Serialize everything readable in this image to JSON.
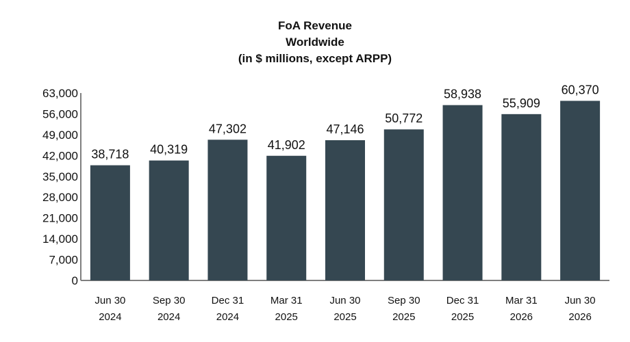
{
  "chart_data": {
    "type": "bar",
    "title_lines": [
      "FoA Revenue",
      "Worldwide",
      "(in $ millions, except ARPP)"
    ],
    "categories": [
      [
        "Jun 30",
        "2024"
      ],
      [
        "Sep 30",
        "2024"
      ],
      [
        "Dec 31",
        "2024"
      ],
      [
        "Mar 31",
        "2025"
      ],
      [
        "Jun 30",
        "2025"
      ],
      [
        "Sep 30",
        "2025"
      ],
      [
        "Dec 31",
        "2025"
      ],
      [
        "Mar 31",
        "2026"
      ],
      [
        "Jun 30",
        "2026"
      ]
    ],
    "values": [
      38718,
      40319,
      47302,
      41902,
      47146,
      50772,
      58938,
      55909,
      60370
    ],
    "value_labels": [
      "38,718",
      "40,319",
      "47,302",
      "41,902",
      "47,146",
      "50,772",
      "58,938",
      "55,909",
      "60,370"
    ],
    "yticks": [
      "0",
      "7,000",
      "14,000",
      "21,000",
      "28,000",
      "35,000",
      "42,000",
      "49,000",
      "56,000",
      "63,000"
    ],
    "ylim": [
      0,
      63000
    ],
    "grid": false,
    "colors": {
      "bar": "#354751",
      "axis": "#7f7f7f"
    }
  }
}
